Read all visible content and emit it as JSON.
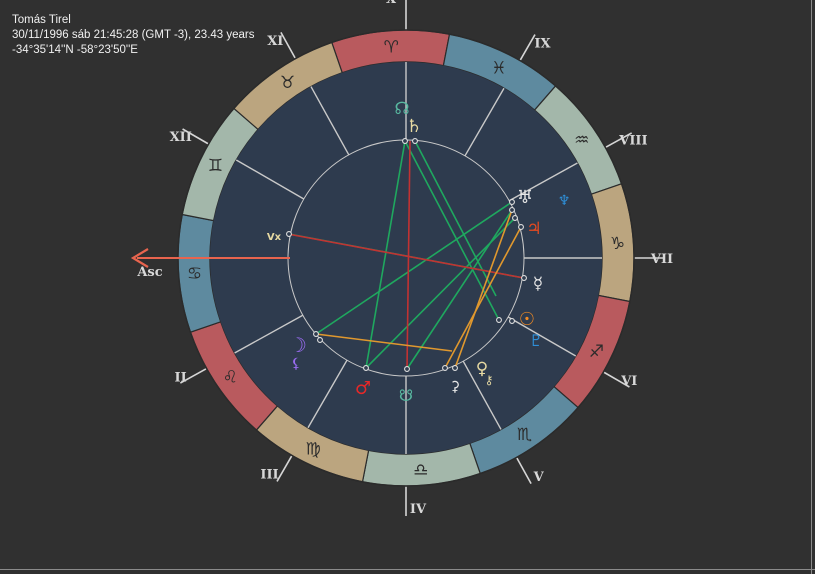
{
  "header": {
    "name": "Tomás Tirel",
    "datetime": "30/11/1996 sáb 21:45:28 (GMT -3), 23.43 years",
    "coordinates": "-34°35'14''N  -58°23'50''E"
  },
  "chart": {
    "ascendant_label": "Asc",
    "colors": {
      "background": "#303030",
      "disc": "#2e3b4e",
      "fire": "#b95a5e",
      "earth": "#bba57f",
      "air": "#a3b7aa",
      "water": "#5e8a9f",
      "arrow": "#e8644e",
      "green_aspect": "#1fa85f",
      "red_aspect": "#c23232",
      "orange_aspect": "#e0982e"
    },
    "house_labels": [
      "X",
      "IX",
      "VIII",
      "VII",
      "VI",
      "V",
      "IV",
      "III",
      "II",
      "XII",
      "XI"
    ],
    "signs": [
      {
        "name": "aries",
        "glyph": "♈"
      },
      {
        "name": "pisces",
        "glyph": "♓"
      },
      {
        "name": "aquarius",
        "glyph": "♒"
      },
      {
        "name": "capricorn",
        "glyph": "♑"
      },
      {
        "name": "sagittarius",
        "glyph": "♐"
      },
      {
        "name": "scorpio",
        "glyph": "♏"
      },
      {
        "name": "libra",
        "glyph": "♎"
      },
      {
        "name": "virgo",
        "glyph": "♍"
      },
      {
        "name": "leo",
        "glyph": "♌"
      },
      {
        "name": "cancer",
        "glyph": "♋"
      },
      {
        "name": "gemini",
        "glyph": "♊"
      },
      {
        "name": "taurus",
        "glyph": "♉"
      }
    ],
    "planets": [
      {
        "name": "north-node",
        "glyph": "☊",
        "color": "#58b8a0"
      },
      {
        "name": "saturn",
        "glyph": "♄",
        "color": "#e6d9a2"
      },
      {
        "name": "uranus",
        "glyph": "♅",
        "color": "#e8e8e8"
      },
      {
        "name": "neptune",
        "glyph": "♆",
        "color": "#2e8fd8"
      },
      {
        "name": "jupiter",
        "glyph": "♃",
        "color": "#e84a20"
      },
      {
        "name": "mercury",
        "glyph": "☿",
        "color": "#e8e8e8"
      },
      {
        "name": "sun",
        "glyph": "☉",
        "color": "#f08a24"
      },
      {
        "name": "pluto",
        "glyph": "♇",
        "color": "#2e8fd8"
      },
      {
        "name": "venus",
        "glyph": "♀",
        "color": "#e6d9a2"
      },
      {
        "name": "ceres",
        "glyph": "⚳",
        "color": "#e8e8e8"
      },
      {
        "name": "chiron",
        "glyph": "⚷",
        "color": "#e6d9a2"
      },
      {
        "name": "south-node",
        "glyph": "☋",
        "color": "#58b8a0"
      },
      {
        "name": "mars",
        "glyph": "♂",
        "color": "#e62828"
      },
      {
        "name": "moon",
        "glyph": "☽",
        "color": "#9a6cf2"
      },
      {
        "name": "lilith",
        "glyph": "⚸",
        "color": "#9a6cf2"
      },
      {
        "name": "vertex",
        "glyph": "Vx",
        "color": "#e6d9a2"
      }
    ]
  }
}
